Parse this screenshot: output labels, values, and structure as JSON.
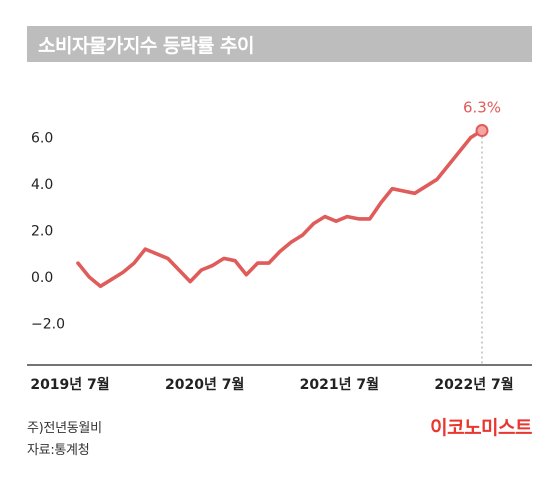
{
  "colors": {
    "accent": "#e05c5a",
    "title_bg": "#bdbdbd",
    "marker_fill": "#f2a7a1",
    "brand": "#e8372f"
  },
  "chart_data": {
    "type": "line",
    "title": "소비자물가지수 등락률 추이",
    "xlabel": "",
    "ylabel": "",
    "ylim": [
      -3.8,
      7.0
    ],
    "yticks": [
      "6.0",
      "4.0",
      "2.0",
      "0.0",
      "−2.0"
    ],
    "ytick_values": [
      6,
      4,
      2,
      0,
      -2
    ],
    "xtick_labels": [
      "2019년 7월",
      "2020년 7월",
      "2021년 7월",
      "2022년 7월"
    ],
    "xtick_index": [
      0,
      12,
      24,
      36
    ],
    "grid": false,
    "legend": "none",
    "highlight_label": "6.3%",
    "highlight_index": 36,
    "series": [
      {
        "values": [
          0.6,
          0.0,
          -0.4,
          -0.1,
          0.2,
          0.6,
          1.2,
          1.0,
          0.8,
          0.3,
          -0.2,
          0.3,
          0.5,
          0.8,
          0.7,
          0.1,
          0.6,
          0.6,
          1.1,
          1.5,
          1.8,
          2.3,
          2.6,
          2.4,
          2.6,
          2.5,
          2.5,
          3.2,
          3.8,
          3.7,
          3.6,
          3.9,
          4.2,
          4.8,
          5.4,
          6.0,
          6.3
        ]
      }
    ]
  },
  "footnotes": {
    "line1": "주)전년동월비",
    "line2": "자료:통계청"
  },
  "brand": "이코노미스트"
}
